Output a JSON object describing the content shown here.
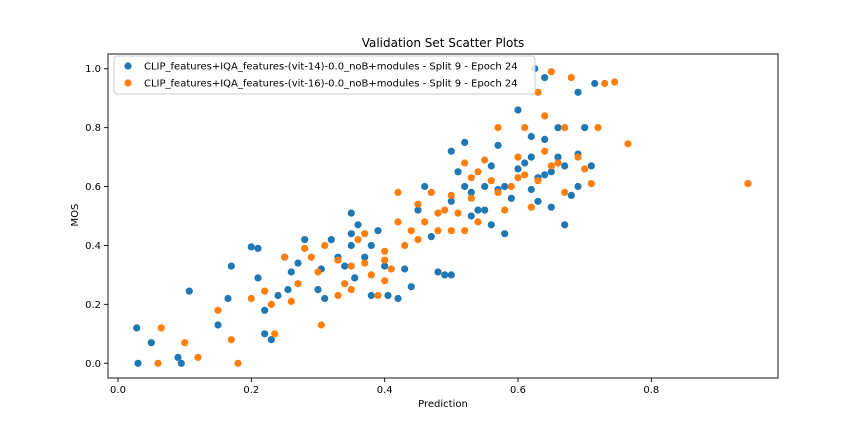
{
  "chart_data": {
    "type": "scatter",
    "title": "Validation Set Scatter Plots",
    "xlabel": "Prediction",
    "ylabel": "MOS",
    "xlim": [
      -0.015,
      0.99
    ],
    "ylim": [
      -0.05,
      1.05
    ],
    "xticks": [
      "0.0",
      "0.2",
      "0.4",
      "0.6",
      "0.8"
    ],
    "xtick_values": [
      0.0,
      0.2,
      0.4,
      0.6,
      0.8
    ],
    "yticks": [
      "0.0",
      "0.2",
      "0.4",
      "0.6",
      "0.8",
      "1.0"
    ],
    "ytick_values": [
      0.0,
      0.2,
      0.4,
      0.6,
      0.8,
      1.0
    ],
    "grid": false,
    "legend_position": "upper-left",
    "series": [
      {
        "name": "CLIP_features+IQA_features-(vit-14)-0.0_noB+modules - Split 9 - Epoch 24",
        "color": "#1f77b4",
        "points": [
          [
            0.028,
            0.12
          ],
          [
            0.03,
            0.0
          ],
          [
            0.05,
            0.07
          ],
          [
            0.09,
            0.02
          ],
          [
            0.095,
            0.0
          ],
          [
            0.107,
            0.245
          ],
          [
            0.15,
            0.13
          ],
          [
            0.165,
            0.22
          ],
          [
            0.17,
            0.33
          ],
          [
            0.2,
            0.395
          ],
          [
            0.21,
            0.39
          ],
          [
            0.21,
            0.29
          ],
          [
            0.22,
            0.18
          ],
          [
            0.22,
            0.1
          ],
          [
            0.23,
            0.08
          ],
          [
            0.24,
            0.23
          ],
          [
            0.25,
            0.36
          ],
          [
            0.255,
            0.25
          ],
          [
            0.26,
            0.31
          ],
          [
            0.27,
            0.34
          ],
          [
            0.28,
            0.42
          ],
          [
            0.3,
            0.25
          ],
          [
            0.305,
            0.32
          ],
          [
            0.31,
            0.22
          ],
          [
            0.32,
            0.42
          ],
          [
            0.33,
            0.36
          ],
          [
            0.34,
            0.33
          ],
          [
            0.35,
            0.44
          ],
          [
            0.35,
            0.4
          ],
          [
            0.35,
            0.51
          ],
          [
            0.355,
            0.29
          ],
          [
            0.36,
            0.47
          ],
          [
            0.37,
            0.36
          ],
          [
            0.38,
            0.23
          ],
          [
            0.38,
            0.4
          ],
          [
            0.39,
            0.45
          ],
          [
            0.4,
            0.33
          ],
          [
            0.405,
            0.23
          ],
          [
            0.42,
            0.22
          ],
          [
            0.43,
            0.32
          ],
          [
            0.44,
            0.26
          ],
          [
            0.45,
            0.52
          ],
          [
            0.46,
            0.6
          ],
          [
            0.47,
            0.43
          ],
          [
            0.48,
            0.31
          ],
          [
            0.49,
            0.3
          ],
          [
            0.5,
            0.3
          ],
          [
            0.5,
            0.55
          ],
          [
            0.5,
            0.72
          ],
          [
            0.51,
            0.65
          ],
          [
            0.52,
            0.6
          ],
          [
            0.52,
            0.75
          ],
          [
            0.53,
            0.5
          ],
          [
            0.53,
            0.58
          ],
          [
            0.54,
            0.52
          ],
          [
            0.55,
            0.6
          ],
          [
            0.55,
            0.52
          ],
          [
            0.56,
            0.47
          ],
          [
            0.56,
            0.67
          ],
          [
            0.57,
            0.59
          ],
          [
            0.57,
            0.74
          ],
          [
            0.58,
            0.44
          ],
          [
            0.58,
            0.6
          ],
          [
            0.59,
            0.56
          ],
          [
            0.6,
            0.66
          ],
          [
            0.6,
            0.86
          ],
          [
            0.61,
            0.68
          ],
          [
            0.62,
            0.7
          ],
          [
            0.62,
            0.59
          ],
          [
            0.62,
            0.77
          ],
          [
            0.63,
            0.55
          ],
          [
            0.63,
            0.63
          ],
          [
            0.64,
            0.64
          ],
          [
            0.64,
            0.76
          ],
          [
            0.65,
            0.65
          ],
          [
            0.65,
            0.53
          ],
          [
            0.66,
            0.8
          ],
          [
            0.66,
            0.7
          ],
          [
            0.67,
            0.67
          ],
          [
            0.67,
            0.47
          ],
          [
            0.68,
            0.57
          ],
          [
            0.69,
            0.6
          ],
          [
            0.69,
            0.71
          ],
          [
            0.7,
            0.8
          ],
          [
            0.71,
            0.67
          ],
          [
            0.715,
            0.95
          ],
          [
            0.625,
            1.0
          ],
          [
            0.64,
            0.97
          ],
          [
            0.69,
            0.92
          ]
        ]
      },
      {
        "name": "CLIP_features+IQA_features-(vit-16)-0.0_noB+modules - Split 9 - Epoch 24",
        "color": "#ff7f0e",
        "points": [
          [
            0.06,
            0.0
          ],
          [
            0.065,
            0.12
          ],
          [
            0.1,
            0.07
          ],
          [
            0.12,
            0.02
          ],
          [
            0.15,
            0.18
          ],
          [
            0.17,
            0.08
          ],
          [
            0.18,
            0.0
          ],
          [
            0.2,
            0.22
          ],
          [
            0.22,
            0.245
          ],
          [
            0.23,
            0.2
          ],
          [
            0.235,
            0.1
          ],
          [
            0.25,
            0.36
          ],
          [
            0.26,
            0.21
          ],
          [
            0.27,
            0.27
          ],
          [
            0.28,
            0.39
          ],
          [
            0.29,
            0.36
          ],
          [
            0.3,
            0.31
          ],
          [
            0.305,
            0.13
          ],
          [
            0.31,
            0.4
          ],
          [
            0.33,
            0.23
          ],
          [
            0.34,
            0.27
          ],
          [
            0.35,
            0.25
          ],
          [
            0.36,
            0.42
          ],
          [
            0.37,
            0.34
          ],
          [
            0.37,
            0.44
          ],
          [
            0.38,
            0.3
          ],
          [
            0.39,
            0.23
          ],
          [
            0.4,
            0.38
          ],
          [
            0.4,
            0.28
          ],
          [
            0.41,
            0.32
          ],
          [
            0.42,
            0.48
          ],
          [
            0.42,
            0.58
          ],
          [
            0.43,
            0.4
          ],
          [
            0.44,
            0.45
          ],
          [
            0.45,
            0.42
          ],
          [
            0.46,
            0.48
          ],
          [
            0.47,
            0.58
          ],
          [
            0.48,
            0.51
          ],
          [
            0.49,
            0.52
          ],
          [
            0.5,
            0.45
          ],
          [
            0.5,
            0.57
          ],
          [
            0.51,
            0.51
          ],
          [
            0.52,
            0.68
          ],
          [
            0.53,
            0.63
          ],
          [
            0.53,
            0.56
          ],
          [
            0.54,
            0.65
          ],
          [
            0.54,
            0.48
          ],
          [
            0.55,
            0.69
          ],
          [
            0.56,
            0.62
          ],
          [
            0.57,
            0.8
          ],
          [
            0.57,
            0.58
          ],
          [
            0.58,
            0.52
          ],
          [
            0.59,
            0.6
          ],
          [
            0.6,
            0.63
          ],
          [
            0.6,
            0.7
          ],
          [
            0.61,
            0.64
          ],
          [
            0.61,
            0.8
          ],
          [
            0.62,
            0.53
          ],
          [
            0.63,
            0.62
          ],
          [
            0.63,
            0.92
          ],
          [
            0.64,
            0.84
          ],
          [
            0.64,
            0.72
          ],
          [
            0.65,
            0.67
          ],
          [
            0.65,
            0.99
          ],
          [
            0.66,
            0.68
          ],
          [
            0.67,
            0.58
          ],
          [
            0.67,
            0.8
          ],
          [
            0.68,
            0.97
          ],
          [
            0.69,
            0.7
          ],
          [
            0.7,
            0.66
          ],
          [
            0.71,
            0.61
          ],
          [
            0.72,
            0.8
          ],
          [
            0.73,
            0.95
          ],
          [
            0.745,
            0.955
          ],
          [
            0.765,
            0.745
          ],
          [
            0.945,
            0.61
          ],
          [
            0.52,
            0.45
          ],
          [
            0.45,
            0.54
          ],
          [
            0.48,
            0.45
          ],
          [
            0.35,
            0.33
          ],
          [
            0.33,
            0.35
          ],
          [
            0.4,
            0.35
          ]
        ]
      }
    ]
  }
}
